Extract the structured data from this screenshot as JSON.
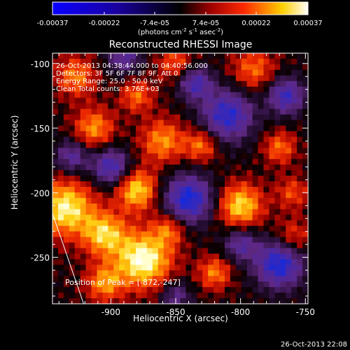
{
  "colorbar": {
    "tick_labels": [
      "-0.00037",
      "-0.00022",
      "-7.4e-05",
      "7.4e-05",
      "0.00022",
      "0.00037"
    ],
    "tick_values": [
      -0.00037,
      -0.00022,
      -7.4e-05,
      7.4e-05,
      0.00022,
      0.00037
    ],
    "range": [
      -0.00037,
      0.00037
    ],
    "units_text": "(photons cm",
    "units_sup1": "-2",
    "units_mid": " s",
    "units_sup2": "-1",
    "units_mid2": " asec",
    "units_sup3": "-2",
    "units_end": ")"
  },
  "chart_data": {
    "type": "heatmap",
    "title": "Reconstructed RHESSI Image",
    "xlabel": "Heliocentric X (arcsec)",
    "ylabel": "Heliocentric Y (arcsec)",
    "xlim": [
      -945,
      -748
    ],
    "ylim": [
      -286,
      -92
    ],
    "x_ticks": [
      -900,
      -850,
      -800,
      -750
    ],
    "x_tick_labels": [
      "-900",
      "-850",
      "-800",
      "-750"
    ],
    "y_ticks": [
      -250,
      -200,
      -150,
      -100
    ],
    "y_tick_labels": [
      "-250",
      "-200",
      "-150",
      "-100"
    ],
    "annotations": [
      "26-Oct-2013 04:38:44.000 to 04:40:56.000",
      "Detectors: 3F 5F 6F 7F 8F 9F, Att 0",
      "Energy Range: 25.0 - 50.0 keV",
      "Clean    Total counts: 3.76E+03"
    ],
    "peak_label": "Position of Peak = [-872,-247]",
    "peak": [
      -872,
      -247
    ],
    "limb_line": [
      [
        -945,
        -216
      ],
      [
        -921,
        -286
      ]
    ],
    "sources": [
      {
        "x": -875,
        "y": -252,
        "sigma": 15,
        "amp": 1.0
      },
      {
        "x": -935,
        "y": -212,
        "sigma": 15,
        "amp": 0.9
      },
      {
        "x": -905,
        "y": -232,
        "sigma": 12,
        "amp": 0.75
      },
      {
        "x": -880,
        "y": -198,
        "sigma": 11,
        "amp": 0.8
      },
      {
        "x": -800,
        "y": -210,
        "sigma": 12,
        "amp": 0.8
      },
      {
        "x": -820,
        "y": -262,
        "sigma": 9,
        "amp": 0.55
      },
      {
        "x": -860,
        "y": -160,
        "sigma": 12,
        "amp": 0.6
      },
      {
        "x": -913,
        "y": -150,
        "sigma": 11,
        "amp": 0.6
      },
      {
        "x": -830,
        "y": -163,
        "sigma": 9,
        "amp": 0.55
      },
      {
        "x": -770,
        "y": -165,
        "sigma": 9,
        "amp": 0.5
      },
      {
        "x": -927,
        "y": -110,
        "sigma": 11,
        "amp": 0.55
      },
      {
        "x": -790,
        "y": -105,
        "sigma": 12,
        "amp": 0.5
      },
      {
        "x": -850,
        "y": -100,
        "sigma": 10,
        "amp": 0.45
      },
      {
        "x": -880,
        "y": -125,
        "sigma": 9,
        "amp": 0.5
      },
      {
        "x": -760,
        "y": -235,
        "sigma": 10,
        "amp": 0.45
      },
      {
        "x": -855,
        "y": -228,
        "sigma": 9,
        "amp": 0.5
      },
      {
        "x": -905,
        "y": -270,
        "sigma": 10,
        "amp": 0.6
      },
      {
        "x": -760,
        "y": -200,
        "sigma": 9,
        "amp": 0.4
      },
      {
        "x": -835,
        "y": -115,
        "sigma": 9,
        "amp": -0.75
      },
      {
        "x": -810,
        "y": -140,
        "sigma": 14,
        "amp": -0.9
      },
      {
        "x": -840,
        "y": -205,
        "sigma": 13,
        "amp": -1.0
      },
      {
        "x": -770,
        "y": -255,
        "sigma": 13,
        "amp": -1.0
      },
      {
        "x": -900,
        "y": -180,
        "sigma": 10,
        "amp": -0.8
      },
      {
        "x": -930,
        "y": -172,
        "sigma": 9,
        "amp": -0.6
      },
      {
        "x": -765,
        "y": -125,
        "sigma": 10,
        "amp": -0.8
      },
      {
        "x": -890,
        "y": -95,
        "sigma": 9,
        "amp": -0.6
      },
      {
        "x": -800,
        "y": -240,
        "sigma": 9,
        "amp": -0.6
      },
      {
        "x": -850,
        "y": -280,
        "sigma": 8,
        "amp": -0.5
      }
    ],
    "colormap": [
      "#0000ff",
      "#000000",
      "#ff0000",
      "#ffff00",
      "#ffffff"
    ]
  },
  "timestamp": "26-Oct-2013 22:08"
}
